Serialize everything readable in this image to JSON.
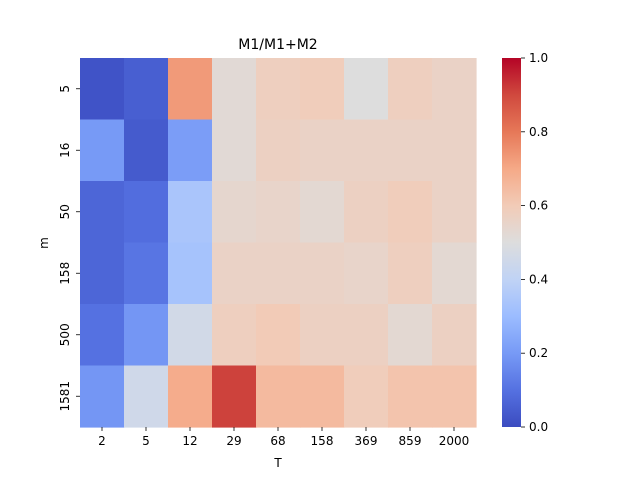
{
  "chart_data": {
    "type": "heatmap",
    "title": "M1/M1+M2",
    "xlabel": "T",
    "ylabel": "m",
    "x_categories": [
      "2",
      "5",
      "12",
      "29",
      "68",
      "158",
      "369",
      "859",
      "2000"
    ],
    "y_categories": [
      "5",
      "16",
      "50",
      "158",
      "500",
      "1581"
    ],
    "values": [
      [
        0.02,
        0.05,
        0.73,
        0.52,
        0.58,
        0.59,
        0.5,
        0.58,
        0.56
      ],
      [
        0.2,
        0.04,
        0.21,
        0.52,
        0.57,
        0.56,
        0.56,
        0.56,
        0.56
      ],
      [
        0.07,
        0.09,
        0.34,
        0.54,
        0.55,
        0.53,
        0.57,
        0.59,
        0.56
      ],
      [
        0.07,
        0.11,
        0.33,
        0.56,
        0.56,
        0.56,
        0.55,
        0.58,
        0.53
      ],
      [
        0.1,
        0.19,
        0.46,
        0.58,
        0.6,
        0.57,
        0.57,
        0.53,
        0.57
      ],
      [
        0.19,
        0.45,
        0.69,
        0.91,
        0.65,
        0.65,
        0.59,
        0.62,
        0.62
      ]
    ],
    "colormap": "coolwarm",
    "vmin": 0.0,
    "vmax": 1.0,
    "colorbar_ticks": [
      "0.0",
      "0.2",
      "0.4",
      "0.6",
      "0.8",
      "1.0"
    ]
  }
}
